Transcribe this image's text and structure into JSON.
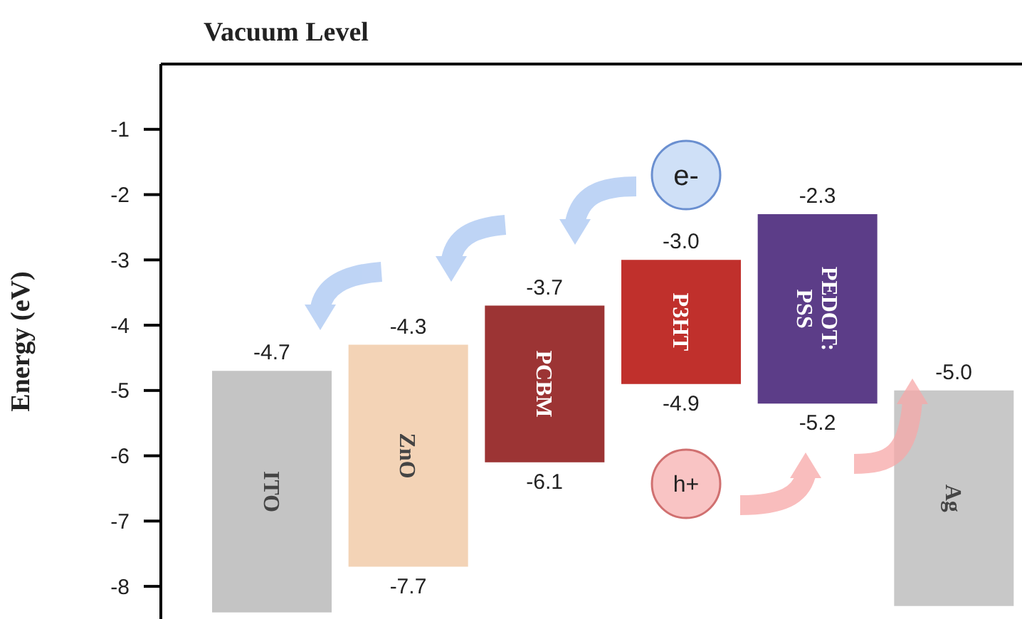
{
  "chart_data": {
    "type": "bar",
    "ylabel": "Energy (eV)",
    "categories": [
      "ITO",
      "ZnO",
      "PCBM",
      "P3HT",
      "PEDOT:PSS",
      "Ag"
    ],
    "base": [
      -4.7,
      -4.3,
      -3.7,
      -3.0,
      -2.3,
      -5.0
    ],
    "values": [
      -3.7,
      -3.4,
      -2.4,
      -1.9,
      -2.9,
      -3.3
    ],
    "colors": [
      "#c4c4c4",
      "#f3d3b6",
      "#9c3434",
      "#c0302c",
      "#5c3d88",
      "#c8c8c8"
    ],
    "ylim": [
      -8.5,
      0
    ],
    "yticks": [
      -1,
      -2,
      -3,
      -4,
      -5,
      -6,
      -7,
      -8
    ],
    "tick_labels": "y",
    "ref_lines": [
      {
        "axis": "y",
        "value": 0,
        "label": "Vacuum Level",
        "color": "#000000"
      }
    ],
    "annotations": [
      {
        "text": "-4.7",
        "x": "ITO",
        "y": -4.7
      },
      {
        "text": "-4.3",
        "x": "ZnO",
        "y": -4.3
      },
      {
        "text": "-7.7",
        "x": "ZnO",
        "y": -7.7
      },
      {
        "text": "-3.7",
        "x": "PCBM",
        "y": -3.7
      },
      {
        "text": "-6.1",
        "x": "PCBM",
        "y": -6.1
      },
      {
        "text": "-3.0",
        "x": "P3HT",
        "y": -3.0
      },
      {
        "text": "-4.9",
        "x": "P3HT",
        "y": -4.9
      },
      {
        "text": "-2.3",
        "x": "PEDOT:PSS",
        "y": -2.3
      },
      {
        "text": "-5.2",
        "x": "PEDOT:PSS",
        "y": -5.2
      },
      {
        "text": "-5.0",
        "x": "Ag",
        "y": -5.0
      },
      "e-",
      "h+"
    ]
  }
}
